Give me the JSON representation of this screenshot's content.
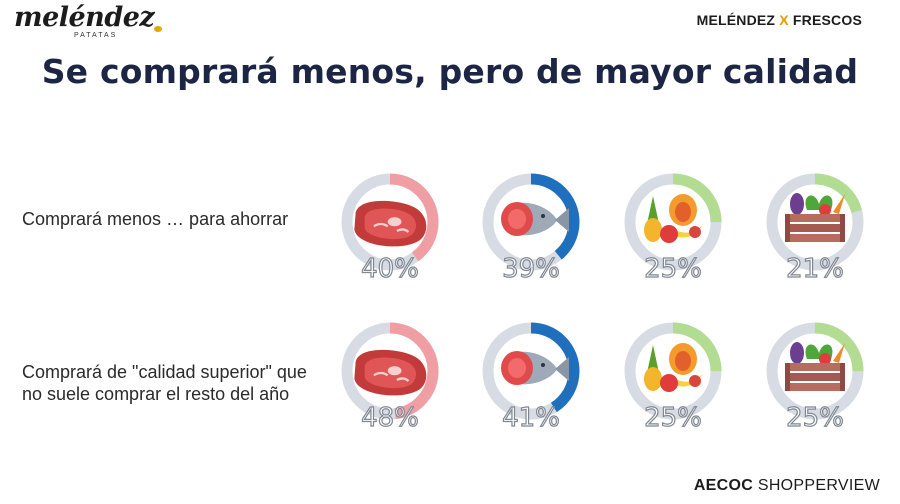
{
  "header": {
    "logo_text": "meléndez",
    "logo_subtext": "PATATAS",
    "brand_left": "MELÉNDEZ",
    "brand_x": "X",
    "brand_right": "FRESCOS"
  },
  "title": "Se comprará menos, pero de mayor calidad",
  "footer": {
    "part1": "AECOC",
    "part2": "SHOPPERVIEW"
  },
  "colors": {
    "ring_bg": "#d7dbe3",
    "meat": "#ef9fa4",
    "fish": "#1f6fbd",
    "fruit": "#b3dc93",
    "veg": "#b3dc93",
    "label": "#ffffff",
    "label_stroke": "#7f8792"
  },
  "chart_data": {
    "type": "donut",
    "categories": [
      "meat",
      "fish",
      "fruit",
      "vegetables"
    ],
    "icons": [
      "steak-icon",
      "fish-icon",
      "fruit-icon",
      "vegetable-crate-icon"
    ],
    "rows": [
      {
        "label": "Comprará menos … para ahorrar",
        "values": [
          40,
          39,
          25,
          21
        ]
      },
      {
        "label": "Comprará de \"calidad superior\" que no suele comprar el resto del año",
        "values": [
          48,
          41,
          25,
          25
        ]
      }
    ]
  }
}
